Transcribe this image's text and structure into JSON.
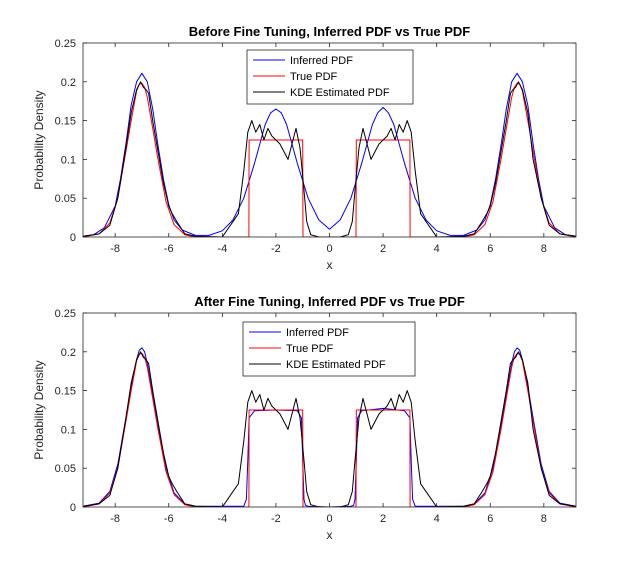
{
  "colors": {
    "inferred": "#0000ff",
    "true": "#ff0000",
    "kde": "#000000",
    "axis": "#262626"
  },
  "chart_data": [
    {
      "type": "line",
      "title": "Before Fine Tuning, Inferred PDF vs True PDF",
      "xlabel": "x",
      "ylabel": "Probability Density",
      "xlim": [
        -9.2,
        9.2
      ],
      "ylim": [
        0,
        0.25
      ],
      "xticks": [
        -8,
        -6,
        -4,
        -2,
        0,
        2,
        4,
        6,
        8
      ],
      "xtick_labels": [
        "-8",
        "-6",
        "-4",
        "-2",
        "0",
        "2",
        "4",
        "6",
        "8"
      ],
      "yticks": [
        0,
        0.05,
        0.1,
        0.15,
        0.2,
        0.25
      ],
      "ytick_labels": [
        "0",
        "0.05",
        "0.1",
        "0.15",
        "0.2",
        "0.25"
      ],
      "legend": [
        "Inferred PDF",
        "True PDF",
        "KDE Estimated PDF"
      ],
      "legend_position": "top-center",
      "series": [
        {
          "name": "Inferred PDF",
          "color": "#0000ff",
          "x": [
            -9.2,
            -8.8,
            -8.4,
            -8,
            -7.8,
            -7.6,
            -7.4,
            -7.2,
            -7,
            -6.8,
            -6.6,
            -6.4,
            -6.2,
            -6,
            -5.8,
            -5.5,
            -5,
            -4.5,
            -4,
            -3.6,
            -3.2,
            -2.8,
            -2.4,
            -2.2,
            -2,
            -1.8,
            -1.6,
            -1.2,
            -0.8,
            -0.4,
            0,
            0.4,
            0.8,
            1.2,
            1.6,
            1.8,
            2,
            2.2,
            2.4,
            2.8,
            3.2,
            3.6,
            4,
            4.5,
            5,
            5.5,
            5.8,
            6,
            6.2,
            6.4,
            6.6,
            6.8,
            7,
            7.2,
            7.4,
            7.6,
            7.8,
            8,
            8.4,
            8.8,
            9.2
          ],
          "y": [
            0.001,
            0.003,
            0.012,
            0.04,
            0.075,
            0.12,
            0.17,
            0.2,
            0.211,
            0.2,
            0.165,
            0.118,
            0.075,
            0.042,
            0.022,
            0.009,
            0.002,
            0.002,
            0.008,
            0.022,
            0.05,
            0.095,
            0.145,
            0.16,
            0.165,
            0.16,
            0.145,
            0.095,
            0.05,
            0.022,
            0.01,
            0.022,
            0.05,
            0.095,
            0.145,
            0.16,
            0.167,
            0.16,
            0.145,
            0.095,
            0.05,
            0.022,
            0.008,
            0.002,
            0.002,
            0.009,
            0.022,
            0.042,
            0.075,
            0.118,
            0.165,
            0.2,
            0.211,
            0.2,
            0.17,
            0.12,
            0.075,
            0.04,
            0.012,
            0.003,
            0.001
          ]
        },
        {
          "name": "True PDF",
          "color": "#ff0000",
          "x": [
            -9.2,
            -8.6,
            -8.2,
            -7.9,
            -7.6,
            -7.4,
            -7.2,
            -7.1,
            -7,
            -6.9,
            -6.8,
            -6.6,
            -6.4,
            -6.1,
            -5.8,
            -5.4,
            -5,
            -3.01,
            -3,
            -1,
            -0.99,
            0.99,
            1,
            3,
            3.01,
            5,
            5.4,
            5.8,
            6.1,
            6.4,
            6.6,
            6.8,
            6.9,
            7,
            7.1,
            7.2,
            7.4,
            7.6,
            7.9,
            8.2,
            8.6,
            9.2
          ],
          "y": [
            0,
            0.004,
            0.018,
            0.05,
            0.11,
            0.15,
            0.188,
            0.197,
            0.198,
            0.193,
            0.18,
            0.14,
            0.1,
            0.045,
            0.016,
            0.003,
            0,
            0,
            0.125,
            0.125,
            0,
            0,
            0.125,
            0.125,
            0,
            0,
            0.003,
            0.016,
            0.045,
            0.1,
            0.14,
            0.18,
            0.193,
            0.198,
            0.197,
            0.188,
            0.15,
            0.11,
            0.05,
            0.018,
            0.004,
            0
          ]
        },
        {
          "name": "KDE Estimated PDF",
          "color": "#000000",
          "x": [
            -9.2,
            -8.6,
            -8.2,
            -7.9,
            -7.6,
            -7.4,
            -7.2,
            -7.05,
            -6.95,
            -6.85,
            -6.75,
            -6.6,
            -6.4,
            -6.2,
            -6,
            -5.9,
            -5.7,
            -5.4,
            -5,
            -4,
            -3.4,
            -3.2,
            -3.05,
            -2.9,
            -2.75,
            -2.6,
            -2.45,
            -2.3,
            -2.15,
            -2,
            -1.85,
            -1.7,
            -1.55,
            -1.4,
            -1.25,
            -1.1,
            -0.95,
            -0.85,
            -0.7,
            -0.4,
            0,
            0.4,
            0.7,
            0.85,
            0.95,
            1.1,
            1.25,
            1.4,
            1.55,
            1.7,
            1.85,
            2,
            2.15,
            2.3,
            2.45,
            2.6,
            2.75,
            2.9,
            3.05,
            3.2,
            3.4,
            4,
            5,
            5.4,
            5.7,
            5.9,
            6,
            6.2,
            6.4,
            6.6,
            6.75,
            6.85,
            6.95,
            7.05,
            7.2,
            7.4,
            7.5,
            7.6,
            7.9,
            8.2,
            8.6,
            9.2
          ],
          "y": [
            0.001,
            0.004,
            0.015,
            0.05,
            0.115,
            0.16,
            0.19,
            0.2,
            0.193,
            0.19,
            0.185,
            0.15,
            0.11,
            0.07,
            0.04,
            0.032,
            0.02,
            0.004,
            0.001,
            0,
            0.03,
            0.085,
            0.135,
            0.15,
            0.135,
            0.145,
            0.125,
            0.14,
            0.13,
            0.125,
            0.12,
            0.11,
            0.1,
            0.12,
            0.14,
            0.115,
            0.06,
            0.02,
            0.003,
            0,
            0,
            0,
            0.003,
            0.02,
            0.06,
            0.115,
            0.14,
            0.12,
            0.1,
            0.11,
            0.12,
            0.125,
            0.13,
            0.14,
            0.125,
            0.145,
            0.135,
            0.15,
            0.135,
            0.085,
            0.03,
            0,
            0.001,
            0.004,
            0.02,
            0.032,
            0.04,
            0.07,
            0.11,
            0.15,
            0.185,
            0.19,
            0.193,
            0.2,
            0.19,
            0.16,
            0.13,
            0.1,
            0.05,
            0.015,
            0.004,
            0.001
          ]
        }
      ]
    },
    {
      "type": "line",
      "title": "After Fine Tuning, Inferred PDF vs True PDF",
      "xlabel": "x",
      "ylabel": "Probability Density",
      "xlim": [
        -9.2,
        9.2
      ],
      "ylim": [
        0,
        0.25
      ],
      "xticks": [
        -8,
        -6,
        -4,
        -2,
        0,
        2,
        4,
        6,
        8
      ],
      "xtick_labels": [
        "-8",
        "-6",
        "-4",
        "-2",
        "0",
        "2",
        "4",
        "6",
        "8"
      ],
      "yticks": [
        0,
        0.05,
        0.1,
        0.15,
        0.2,
        0.25
      ],
      "ytick_labels": [
        "0",
        "0.05",
        "0.1",
        "0.15",
        "0.2",
        "0.25"
      ],
      "legend": [
        "Inferred PDF",
        "True PDF",
        "KDE Estimated PDF"
      ],
      "legend_position": "top-center",
      "series": [
        {
          "name": "Inferred PDF",
          "color": "#0000ff",
          "x": [
            -9.2,
            -8.6,
            -8.2,
            -7.9,
            -7.6,
            -7.4,
            -7.2,
            -7.1,
            -7,
            -6.9,
            -6.8,
            -6.6,
            -6.4,
            -6.1,
            -5.8,
            -5.4,
            -5,
            -3.2,
            -3.1,
            -3.05,
            -3,
            -2.8,
            -2,
            -1.2,
            -1.05,
            -1,
            -0.95,
            -0.9,
            -0.8,
            0,
            0.8,
            0.9,
            0.95,
            1,
            1.05,
            1.2,
            2,
            2.8,
            3,
            3.05,
            3.1,
            3.2,
            5,
            5.4,
            5.8,
            6.1,
            6.4,
            6.6,
            6.8,
            6.9,
            7,
            7.1,
            7.2,
            7.4,
            7.6,
            7.9,
            8.2,
            8.6,
            9.2
          ],
          "y": [
            0.001,
            0.005,
            0.02,
            0.055,
            0.115,
            0.155,
            0.19,
            0.202,
            0.205,
            0.2,
            0.185,
            0.145,
            0.105,
            0.05,
            0.018,
            0.004,
            0.001,
            0.001,
            0.01,
            0.06,
            0.115,
            0.124,
            0.125,
            0.124,
            0.115,
            0.06,
            0.01,
            0.002,
            0.001,
            0,
            0.001,
            0.002,
            0.01,
            0.06,
            0.115,
            0.124,
            0.127,
            0.124,
            0.115,
            0.06,
            0.01,
            0.001,
            0.001,
            0.004,
            0.018,
            0.05,
            0.105,
            0.145,
            0.185,
            0.2,
            0.205,
            0.202,
            0.19,
            0.155,
            0.115,
            0.055,
            0.02,
            0.005,
            0.001
          ]
        },
        {
          "name": "True PDF",
          "color": "#ff0000",
          "x": [
            -9.2,
            -8.6,
            -8.2,
            -7.9,
            -7.6,
            -7.4,
            -7.2,
            -7.1,
            -7,
            -6.9,
            -6.8,
            -6.6,
            -6.4,
            -6.1,
            -5.8,
            -5.4,
            -5,
            -3.01,
            -3,
            -1,
            -0.99,
            0.99,
            1,
            3,
            3.01,
            5,
            5.4,
            5.8,
            6.1,
            6.4,
            6.6,
            6.8,
            6.9,
            7,
            7.1,
            7.2,
            7.4,
            7.6,
            7.9,
            8.2,
            8.6,
            9.2
          ],
          "y": [
            0,
            0.004,
            0.018,
            0.05,
            0.11,
            0.15,
            0.188,
            0.197,
            0.198,
            0.193,
            0.18,
            0.14,
            0.1,
            0.045,
            0.016,
            0.003,
            0,
            0,
            0.125,
            0.125,
            0,
            0,
            0.125,
            0.125,
            0,
            0,
            0.003,
            0.016,
            0.045,
            0.1,
            0.14,
            0.18,
            0.193,
            0.198,
            0.197,
            0.188,
            0.15,
            0.11,
            0.05,
            0.018,
            0.004,
            0
          ]
        },
        {
          "name": "KDE Estimated PDF",
          "color": "#000000",
          "x": [
            -9.2,
            -8.6,
            -8.2,
            -7.9,
            -7.6,
            -7.4,
            -7.2,
            -7.05,
            -6.95,
            -6.85,
            -6.75,
            -6.6,
            -6.4,
            -6.2,
            -6,
            -5.9,
            -5.7,
            -5.4,
            -5,
            -4,
            -3.4,
            -3.2,
            -3.05,
            -2.9,
            -2.75,
            -2.6,
            -2.45,
            -2.3,
            -2.15,
            -2,
            -1.85,
            -1.7,
            -1.55,
            -1.4,
            -1.25,
            -1.1,
            -0.95,
            -0.85,
            -0.7,
            -0.4,
            0,
            0.4,
            0.7,
            0.85,
            0.95,
            1.1,
            1.25,
            1.4,
            1.55,
            1.7,
            1.85,
            2,
            2.15,
            2.3,
            2.45,
            2.6,
            2.75,
            2.9,
            3.05,
            3.2,
            3.4,
            4,
            5,
            5.4,
            5.7,
            5.9,
            6,
            6.2,
            6.4,
            6.6,
            6.75,
            6.85,
            6.95,
            7.05,
            7.2,
            7.4,
            7.5,
            7.6,
            7.9,
            8.2,
            8.6,
            9.2
          ],
          "y": [
            0.001,
            0.004,
            0.015,
            0.05,
            0.115,
            0.16,
            0.19,
            0.2,
            0.193,
            0.19,
            0.185,
            0.15,
            0.11,
            0.07,
            0.04,
            0.032,
            0.02,
            0.004,
            0.001,
            0,
            0.03,
            0.085,
            0.135,
            0.15,
            0.135,
            0.145,
            0.125,
            0.14,
            0.13,
            0.125,
            0.12,
            0.11,
            0.1,
            0.12,
            0.14,
            0.115,
            0.06,
            0.02,
            0.003,
            0,
            0,
            0,
            0.003,
            0.02,
            0.06,
            0.115,
            0.14,
            0.12,
            0.1,
            0.11,
            0.12,
            0.125,
            0.13,
            0.14,
            0.125,
            0.145,
            0.135,
            0.15,
            0.135,
            0.085,
            0.03,
            0,
            0.001,
            0.004,
            0.02,
            0.032,
            0.04,
            0.07,
            0.11,
            0.15,
            0.185,
            0.19,
            0.193,
            0.2,
            0.19,
            0.16,
            0.13,
            0.1,
            0.05,
            0.015,
            0.004,
            0.001
          ]
        }
      ]
    }
  ]
}
